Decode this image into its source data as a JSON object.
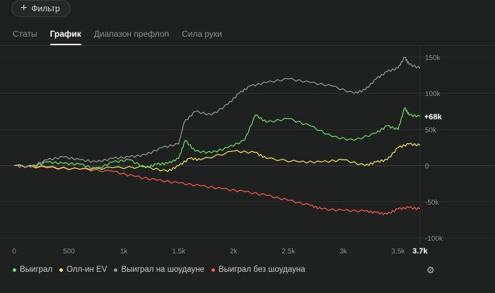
{
  "filter_button": {
    "label": "Фильтр",
    "icon": "plus-icon"
  },
  "tabs": [
    {
      "label": "Статы",
      "active": false
    },
    {
      "label": "График",
      "active": true
    },
    {
      "label": "Диапазон префлоп",
      "active": false
    },
    {
      "label": "Сила руки",
      "active": false
    }
  ],
  "legend": [
    {
      "label": "Выиграл",
      "color": "#6ee06a"
    },
    {
      "label": "Олл-ин EV",
      "color": "#f3e85c"
    },
    {
      "label": "Выиграл на шоудауне",
      "color": "#9a9a98"
    },
    {
      "label": "Выиграл без шоудауна",
      "color": "#ff5a4e"
    }
  ],
  "chart_data": {
    "type": "line",
    "x_ticks": [
      "0",
      "500",
      "1k",
      "1.5k",
      "2k",
      "2.5k",
      "3k",
      "3.5k"
    ],
    "x_end_label": "3.7k",
    "y_ticks": [
      "150k",
      "100k",
      "50k",
      "0",
      "-50k",
      "-100k"
    ],
    "xlim": [
      0,
      3700
    ],
    "ylim": [
      -100000,
      150000
    ],
    "end_value_label": "+68k",
    "grid": true,
    "series": [
      {
        "name": "Выиграл",
        "color": "#6ee06a",
        "x": [
          0,
          150,
          300,
          450,
          600,
          750,
          900,
          1050,
          1200,
          1300,
          1400,
          1500,
          1560,
          1650,
          1800,
          1950,
          2100,
          2200,
          2300,
          2500,
          2700,
          2900,
          3100,
          3300,
          3400,
          3500,
          3560,
          3600,
          3700
        ],
        "y": [
          0,
          -2000,
          5000,
          3000,
          2000,
          -5000,
          5000,
          8000,
          -3000,
          2000,
          3000,
          10000,
          35000,
          20000,
          18000,
          25000,
          35000,
          70000,
          60000,
          65000,
          55000,
          40000,
          35000,
          45000,
          55000,
          50000,
          80000,
          70000,
          68000
        ]
      },
      {
        "name": "Олл-ин EV",
        "color": "#f3e85c",
        "x": [
          0,
          300,
          600,
          900,
          1200,
          1400,
          1500,
          1600,
          1700,
          2000,
          2200,
          2300,
          2600,
          2800,
          3000,
          3200,
          3300,
          3400,
          3500,
          3600,
          3700
        ],
        "y": [
          0,
          -2000,
          -5000,
          -3000,
          -2000,
          -8000,
          0,
          10000,
          8000,
          20000,
          18000,
          10000,
          5000,
          5000,
          8000,
          0,
          5000,
          8000,
          25000,
          30000,
          28000
        ]
      },
      {
        "name": "Выиграл на шоудауне",
        "color": "#9a9a98",
        "x": [
          0,
          150,
          300,
          450,
          600,
          750,
          900,
          1050,
          1200,
          1350,
          1500,
          1550,
          1650,
          1800,
          1950,
          2050,
          2150,
          2300,
          2500,
          2700,
          2900,
          3100,
          3200,
          3300,
          3400,
          3500,
          3560,
          3600,
          3700
        ],
        "y": [
          0,
          -2000,
          8000,
          12000,
          8000,
          5000,
          10000,
          12000,
          15000,
          25000,
          30000,
          60000,
          75000,
          70000,
          85000,
          100000,
          110000,
          115000,
          120000,
          115000,
          110000,
          100000,
          105000,
          120000,
          130000,
          135000,
          150000,
          140000,
          135000
        ]
      },
      {
        "name": "Выиграл без шоудауна",
        "color": "#ff5a4e",
        "x": [
          0,
          300,
          600,
          900,
          1100,
          1300,
          1500,
          1700,
          1900,
          2100,
          2300,
          2500,
          2700,
          2800,
          3000,
          3200,
          3300,
          3400,
          3500,
          3600,
          3700
        ],
        "y": [
          0,
          -3000,
          -5000,
          -8000,
          -15000,
          -20000,
          -24000,
          -28000,
          -32000,
          -36000,
          -41000,
          -48000,
          -55000,
          -60000,
          -62000,
          -63000,
          -65000,
          -67000,
          -60000,
          -58000,
          -60000
        ]
      }
    ]
  }
}
